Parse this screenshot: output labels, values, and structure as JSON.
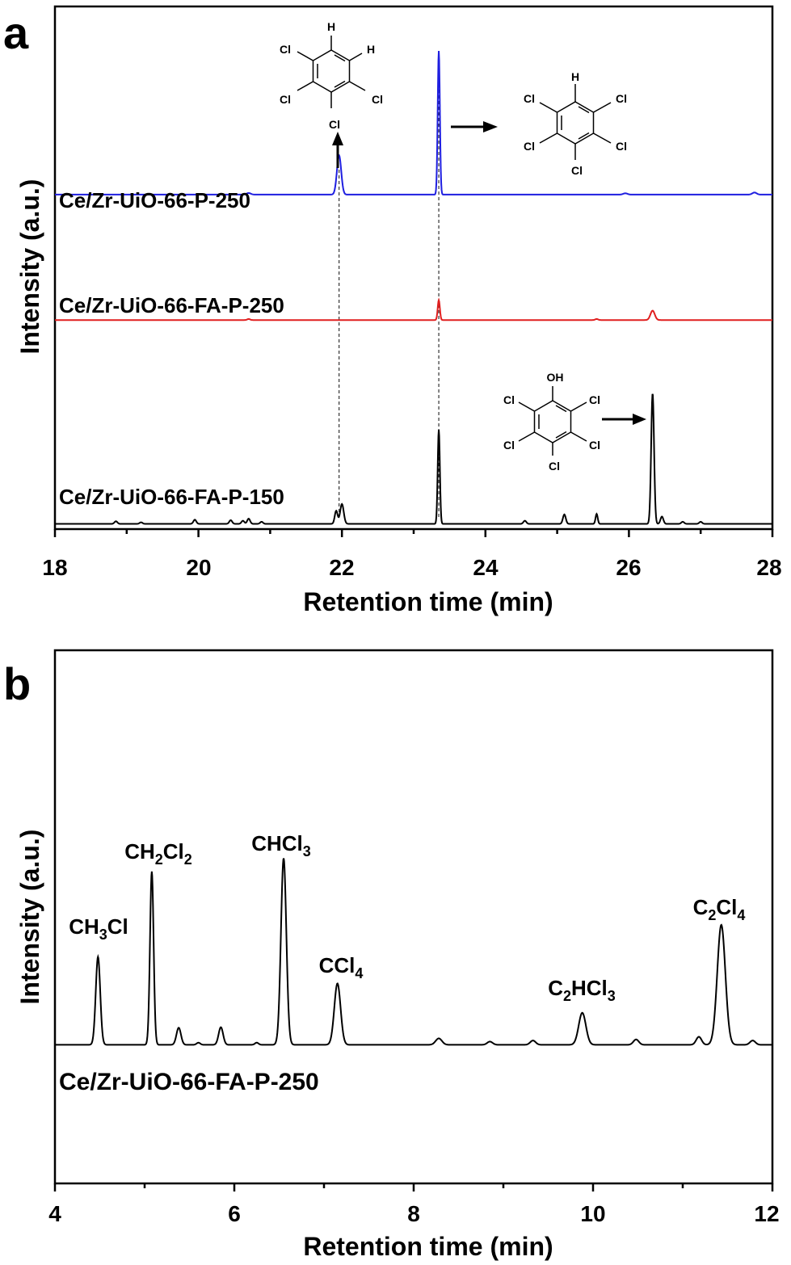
{
  "colors": {
    "blue": "#1f1fe0",
    "red": "#e01f1f",
    "black": "#000000",
    "axis": "#000000"
  },
  "chart_data": [
    {
      "type": "line",
      "panel_letter": "a",
      "xlabel": "Retention time (min)",
      "ylabel": "Intensity (a.u.)",
      "xlim": [
        18,
        28
      ],
      "x_ticks": [
        "18",
        "20",
        "22",
        "24",
        "26",
        "28"
      ],
      "ylim": [
        0,
        100
      ],
      "y_ticks_labeled": false,
      "grid": false,
      "series": [
        {
          "name": "Ce/Zr-UiO-66-P-250",
          "color": "#1f1fe0",
          "baseline": 64,
          "peaks": [
            {
              "x": 21.96,
              "height": 7.5,
              "width": 0.03
            },
            {
              "x": 23.35,
              "height": 27.5,
              "width": 0.015
            },
            {
              "x": 20.7,
              "height": 0.3,
              "width": 0.03
            },
            {
              "x": 25.95,
              "height": 0.25,
              "width": 0.03
            },
            {
              "x": 27.75,
              "height": 0.4,
              "width": 0.03
            }
          ]
        },
        {
          "name": "Ce/Zr-UiO-66-FA-P-250",
          "color": "#e01f1f",
          "baseline": 40,
          "peaks": [
            {
              "x": 23.35,
              "height": 3.8,
              "width": 0.015
            },
            {
              "x": 26.33,
              "height": 1.8,
              "width": 0.03
            },
            {
              "x": 25.55,
              "height": 0.2,
              "width": 0.02
            },
            {
              "x": 20.7,
              "height": 0.2,
              "width": 0.02
            }
          ]
        },
        {
          "name": "Ce/Zr-UiO-66-FA-P-150",
          "color": "#000000",
          "baseline": 1,
          "peaks": [
            {
              "x": 18.85,
              "height": 0.5,
              "width": 0.02
            },
            {
              "x": 19.2,
              "height": 0.3,
              "width": 0.02
            },
            {
              "x": 19.95,
              "height": 0.8,
              "width": 0.02
            },
            {
              "x": 20.45,
              "height": 0.7,
              "width": 0.02
            },
            {
              "x": 20.62,
              "height": 0.6,
              "width": 0.02
            },
            {
              "x": 20.7,
              "height": 1.0,
              "width": 0.02
            },
            {
              "x": 20.88,
              "height": 0.4,
              "width": 0.02
            },
            {
              "x": 21.92,
              "height": 2.5,
              "width": 0.02
            },
            {
              "x": 22.0,
              "height": 3.8,
              "width": 0.025
            },
            {
              "x": 23.35,
              "height": 18,
              "width": 0.015
            },
            {
              "x": 24.55,
              "height": 0.6,
              "width": 0.02
            },
            {
              "x": 25.1,
              "height": 1.8,
              "width": 0.02
            },
            {
              "x": 25.55,
              "height": 1.9,
              "width": 0.015
            },
            {
              "x": 26.33,
              "height": 25,
              "width": 0.02
            },
            {
              "x": 26.46,
              "height": 1.4,
              "width": 0.02
            },
            {
              "x": 26.75,
              "height": 0.4,
              "width": 0.02
            },
            {
              "x": 27.0,
              "height": 0.4,
              "width": 0.02
            }
          ]
        }
      ],
      "annotations": {
        "dashed_lines_x": [
          21.96,
          23.35
        ],
        "molecules": [
          "tetrachlorobenzene",
          "pentachlorobenzene",
          "pentachlorophenol"
        ],
        "atoms": {
          "cl": "Cl",
          "h": "H",
          "oh": "OH"
        }
      }
    },
    {
      "type": "line",
      "panel_letter": "b",
      "xlabel": "Retention time (min)",
      "ylabel": "Intensity (a.u.)",
      "xlim": [
        4,
        12
      ],
      "x_ticks": [
        "4",
        "6",
        "8",
        "10",
        "12"
      ],
      "ylim": [
        0,
        100
      ],
      "y_ticks_labeled": false,
      "grid": false,
      "series": [
        {
          "name": "Ce/Zr-UiO-66-FA-P-250",
          "color": "#000000",
          "baseline": 26,
          "peaks": [
            {
              "x": 4.48,
              "height": 16.5,
              "width": 0.025
            },
            {
              "x": 5.08,
              "height": 32.5,
              "width": 0.02
            },
            {
              "x": 5.38,
              "height": 3.2,
              "width": 0.025
            },
            {
              "x": 5.6,
              "height": 0.4,
              "width": 0.02
            },
            {
              "x": 5.85,
              "height": 3.3,
              "width": 0.025
            },
            {
              "x": 6.25,
              "height": 0.4,
              "width": 0.02
            },
            {
              "x": 6.55,
              "height": 35,
              "width": 0.03
            },
            {
              "x": 7.15,
              "height": 11.5,
              "width": 0.035
            },
            {
              "x": 8.28,
              "height": 1.2,
              "width": 0.035
            },
            {
              "x": 8.85,
              "height": 0.6,
              "width": 0.03
            },
            {
              "x": 9.33,
              "height": 0.8,
              "width": 0.03
            },
            {
              "x": 9.88,
              "height": 6.0,
              "width": 0.04
            },
            {
              "x": 10.48,
              "height": 1.0,
              "width": 0.03
            },
            {
              "x": 11.18,
              "height": 1.5,
              "width": 0.03
            },
            {
              "x": 11.43,
              "height": 22.5,
              "width": 0.045
            },
            {
              "x": 11.78,
              "height": 0.8,
              "width": 0.03
            }
          ]
        }
      ],
      "peak_labels": [
        {
          "main": "CH",
          "sub": "3",
          "rest": "Cl",
          "x": 4.48
        },
        {
          "main": "CH",
          "sub": "2",
          "rest": "Cl",
          "sub2": "2",
          "x": 5.08
        },
        {
          "main": "CHCl",
          "sub": "3",
          "x": 6.55
        },
        {
          "main": "CCl",
          "sub": "4",
          "x": 7.15
        },
        {
          "main": "C",
          "sub": "2",
          "rest": "HCl",
          "sub2": "3",
          "x": 9.88
        },
        {
          "main": "C",
          "sub": "2",
          "rest": "Cl",
          "sub2": "4",
          "x": 11.43
        }
      ]
    }
  ]
}
